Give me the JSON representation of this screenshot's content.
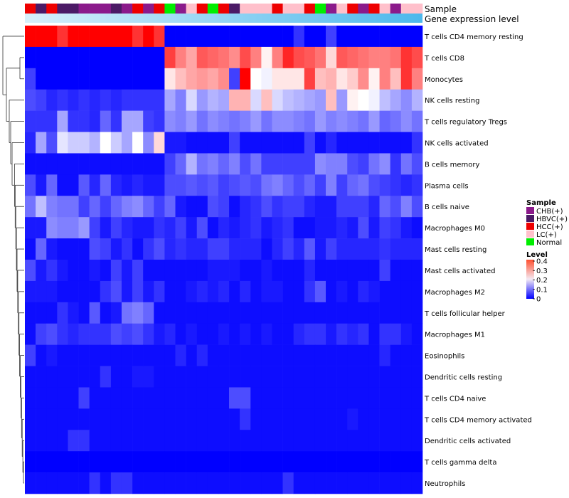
{
  "chart_data": {
    "type": "heatmap",
    "title": "",
    "annotation_tracks": [
      "Sample",
      "Gene expression level"
    ],
    "sample_annotation": [
      "HCC(+)",
      "HBVC(+)",
      "HCC(+)",
      "HBVC(+)",
      "HBVC(+)",
      "CHB(+)",
      "CHB(+)",
      "CHB(+)",
      "HBVC(+)",
      "CHB(+)",
      "HCC(+)",
      "CHB(+)",
      "HCC(+)",
      "Normal",
      "CHB(+)",
      "LC(+)",
      "HCC(+)",
      "Normal",
      "HCC(+)",
      "HBVC(+)",
      "LC(+)",
      "LC(+)",
      "LC(+)",
      "HCC(+)",
      "LC(+)",
      "LC(+)",
      "HCC(+)",
      "Normal",
      "CHB(+)",
      "LC(+)",
      "HCC(+)",
      "CHB(+)",
      "HCC(+)",
      "LC(+)",
      "CHB(+)",
      "LC(+)",
      "LC(+)"
    ],
    "rows": [
      "T cells CD4 memory resting",
      "T cells CD8",
      "Monocytes",
      "NK cells resting",
      "T cells regulatory  Tregs",
      "NK cells activated",
      "B cells memory",
      "Plasma cells",
      "B cells naive",
      "Macrophages M0",
      "Mast cells resting",
      "Mast cells activated",
      "Macrophages M2",
      "T cells follicular helper",
      "Macrophages M1",
      "Eosinophils",
      "Dendritic cells resting",
      "T cells CD4 naive",
      "T cells CD4 memory activated",
      "Dendritic cells activated",
      "T cells gamma delta",
      "Neutrophils"
    ],
    "values": [
      [
        0.4,
        0.4,
        0.4,
        0.36,
        0.4,
        0.4,
        0.4,
        0.4,
        0.4,
        0.4,
        0.36,
        0.4,
        0.36,
        0,
        0,
        0,
        0,
        0,
        0,
        0,
        0,
        0,
        0,
        0,
        0,
        0.04,
        0,
        0,
        0.05,
        0,
        0,
        0,
        0,
        0,
        0,
        0,
        0
      ],
      [
        0,
        0,
        0,
        0,
        0,
        0,
        0,
        0,
        0,
        0,
        0,
        0,
        0,
        0.35,
        0.3,
        0.27,
        0.33,
        0.32,
        0.31,
        0.29,
        0.34,
        0.3,
        0.21,
        0.3,
        0.37,
        0.34,
        0.33,
        0.31,
        0.23,
        0.33,
        0.32,
        0.31,
        0.3,
        0.3,
        0.31,
        0.36,
        0.34
      ],
      [
        0.05,
        0,
        0,
        0,
        0,
        0,
        0,
        0,
        0,
        0,
        0,
        0,
        0,
        0.22,
        0.25,
        0.27,
        0.28,
        0.27,
        0.29,
        0.05,
        0.4,
        0.2,
        0.19,
        0.22,
        0.22,
        0.22,
        0.35,
        0.25,
        0.26,
        0.22,
        0.24,
        0.29,
        0.21,
        0.3,
        0.25,
        0.36,
        0.3
      ],
      [
        0.06,
        0.05,
        0.03,
        0.04,
        0.03,
        0.04,
        0.03,
        0.04,
        0.03,
        0.04,
        0.04,
        0.04,
        0.04,
        0.13,
        0.1,
        0.17,
        0.12,
        0.14,
        0.13,
        0.26,
        0.26,
        0.17,
        0.25,
        0.17,
        0.15,
        0.14,
        0.13,
        0.12,
        0.25,
        0.12,
        0.21,
        0.2,
        0.19,
        0.15,
        0.13,
        0.11,
        0.14
      ],
      [
        0.04,
        0.04,
        0.04,
        0.13,
        0.04,
        0.04,
        0.03,
        0.08,
        0.04,
        0.13,
        0.13,
        0.05,
        0.04,
        0.11,
        0.1,
        0.12,
        0.09,
        0.11,
        0.1,
        0.09,
        0.1,
        0.12,
        0.09,
        0.11,
        0.11,
        0.1,
        0.09,
        0.12,
        0.1,
        0.11,
        0.1,
        0.09,
        0.12,
        0.08,
        0.09,
        0.11,
        0.09
      ],
      [
        0.03,
        0.13,
        0.06,
        0.18,
        0.16,
        0.16,
        0.14,
        0.2,
        0.16,
        0.13,
        0.2,
        0.11,
        0.23,
        0.02,
        0.02,
        0.01,
        0.01,
        0.01,
        0.01,
        0.05,
        0.01,
        0.01,
        0.01,
        0.01,
        0.01,
        0.01,
        0.05,
        0.01,
        0.03,
        0.01,
        0.01,
        0.01,
        0.01,
        0.01,
        0.01,
        0.01,
        0.04
      ],
      [
        0.01,
        0.01,
        0.01,
        0.01,
        0.01,
        0.01,
        0.01,
        0.01,
        0.01,
        0.01,
        0.01,
        0.01,
        0.01,
        0.05,
        0.08,
        0.14,
        0.09,
        0.1,
        0.08,
        0.1,
        0.06,
        0.09,
        0.05,
        0.05,
        0.05,
        0.05,
        0.05,
        0.11,
        0.1,
        0.1,
        0.06,
        0.05,
        0.09,
        0.11,
        0.04,
        0.09,
        0.06
      ],
      [
        0.06,
        0.02,
        0.08,
        0.01,
        0.01,
        0.07,
        0.03,
        0.08,
        0.03,
        0.02,
        0.03,
        0.02,
        0.02,
        0.06,
        0.06,
        0.07,
        0.06,
        0.07,
        0.05,
        0.06,
        0.07,
        0.06,
        0.09,
        0.1,
        0.08,
        0.06,
        0.08,
        0.05,
        0.1,
        0.05,
        0.08,
        0.09,
        0.06,
        0.05,
        0.04,
        0.03,
        0.04
      ],
      [
        0.09,
        0.15,
        0.1,
        0.09,
        0.09,
        0.05,
        0.08,
        0.05,
        0.08,
        0.1,
        0.11,
        0.08,
        0.05,
        0.08,
        0.02,
        0.01,
        0.01,
        0.06,
        0.05,
        0.01,
        0.03,
        0.04,
        0.06,
        0.04,
        0.05,
        0.05,
        0.03,
        0.02,
        0.02,
        0.05,
        0.05,
        0.05,
        0.03,
        0.08,
        0.06,
        0.1,
        0.06
      ],
      [
        0.02,
        0.02,
        0.11,
        0.1,
        0.1,
        0.12,
        0.05,
        0.02,
        0.05,
        0.03,
        0.02,
        0.02,
        0.04,
        0.03,
        0.05,
        0.02,
        0.06,
        0.01,
        0.03,
        0.02,
        0.03,
        0.04,
        0.02,
        0.03,
        0.04,
        0.01,
        0.01,
        0.02,
        0.02,
        0.03,
        0.02,
        0.06,
        0.02,
        0.05,
        0.04,
        0.02,
        0.01
      ],
      [
        0.01,
        0.08,
        0.02,
        0.01,
        0.01,
        0.01,
        0.06,
        0.05,
        0.02,
        0.04,
        0.01,
        0.04,
        0.06,
        0.03,
        0.04,
        0.03,
        0.03,
        0.05,
        0.05,
        0.03,
        0.03,
        0.03,
        0.01,
        0.03,
        0.05,
        0.03,
        0.07,
        0.02,
        0.05,
        0.03,
        0.03,
        0.03,
        0.03,
        0.04,
        0.03,
        0.03,
        0.03
      ],
      [
        0.06,
        0.02,
        0.04,
        0.02,
        0.01,
        0.01,
        0.02,
        0.01,
        0.05,
        0.02,
        0.05,
        0.01,
        0.01,
        0.01,
        0.01,
        0.01,
        0.01,
        0.02,
        0.02,
        0.02,
        0.01,
        0.01,
        0.02,
        0.01,
        0.01,
        0.01,
        0.03,
        0.01,
        0.01,
        0.01,
        0.01,
        0.01,
        0.01,
        0.05,
        0.01,
        0.01,
        0.01
      ],
      [
        0.02,
        0.02,
        0.02,
        0.01,
        0.01,
        0.01,
        0.01,
        0.04,
        0.06,
        0.02,
        0.05,
        0.02,
        0.04,
        0.01,
        0.01,
        0.02,
        0.03,
        0.02,
        0.03,
        0.01,
        0.03,
        0.01,
        0.02,
        0.02,
        0.01,
        0.01,
        0.04,
        0.07,
        0.01,
        0.02,
        0.01,
        0.03,
        0.02,
        0.01,
        0.01,
        0.01,
        0.01
      ],
      [
        0.01,
        0.01,
        0.01,
        0.04,
        0.02,
        0.01,
        0.07,
        0.01,
        0.02,
        0.09,
        0.1,
        0.08,
        0.01,
        0.01,
        0.01,
        0.01,
        0.01,
        0.01,
        0.01,
        0.01,
        0.01,
        0.01,
        0.01,
        0.01,
        0.01,
        0.01,
        0.01,
        0.01,
        0.01,
        0.01,
        0.01,
        0.01,
        0.01,
        0.01,
        0.01,
        0.01,
        0.01
      ],
      [
        0.01,
        0.05,
        0.06,
        0.04,
        0.03,
        0.04,
        0.04,
        0.04,
        0.06,
        0.05,
        0.06,
        0.04,
        0.02,
        0.03,
        0.01,
        0.02,
        0.01,
        0.01,
        0.02,
        0.01,
        0.02,
        0.01,
        0.02,
        0.01,
        0.01,
        0.03,
        0.04,
        0.04,
        0.02,
        0.04,
        0.03,
        0.04,
        0.01,
        0.04,
        0.04,
        0.02,
        0.01
      ],
      [
        0.05,
        0.01,
        0.02,
        0.01,
        0.01,
        0.01,
        0.01,
        0.01,
        0.01,
        0.01,
        0.01,
        0.01,
        0.01,
        0.01,
        0.03,
        0.01,
        0.03,
        0.01,
        0.01,
        0.01,
        0.01,
        0.01,
        0.01,
        0.01,
        0.01,
        0.01,
        0.01,
        0.01,
        0.01,
        0.01,
        0.01,
        0.01,
        0.01,
        0.03,
        0.01,
        0.01,
        0.01
      ],
      [
        0.01,
        0.01,
        0.01,
        0.01,
        0.01,
        0.01,
        0.01,
        0.04,
        0.01,
        0.01,
        0.02,
        0.02,
        0.01,
        0.01,
        0.01,
        0.01,
        0.01,
        0.01,
        0.01,
        0.01,
        0.01,
        0.01,
        0.01,
        0.01,
        0.01,
        0.01,
        0.01,
        0.01,
        0.01,
        0.01,
        0.01,
        0.01,
        0.01,
        0.01,
        0.01,
        0.01,
        0.01
      ],
      [
        0.01,
        0.01,
        0.01,
        0.01,
        0.01,
        0.05,
        0.01,
        0.01,
        0.01,
        0.01,
        0.01,
        0.01,
        0.01,
        0.01,
        0.01,
        0.01,
        0.01,
        0.01,
        0.01,
        0.06,
        0.06,
        0.01,
        0.01,
        0.01,
        0.01,
        0.01,
        0.01,
        0.01,
        0.01,
        0.01,
        0.01,
        0.01,
        0.01,
        0.01,
        0.01,
        0.01,
        0.01
      ],
      [
        0.01,
        0.01,
        0.01,
        0.01,
        0.01,
        0.01,
        0.01,
        0.01,
        0.01,
        0.01,
        0.01,
        0.01,
        0.01,
        0.01,
        0.01,
        0.01,
        0.01,
        0.01,
        0.01,
        0.01,
        0.04,
        0.01,
        0.01,
        0.01,
        0.01,
        0.01,
        0.01,
        0.01,
        0.01,
        0.01,
        0.02,
        0.01,
        0.01,
        0.01,
        0.01,
        0.01,
        0.01
      ],
      [
        0.01,
        0.01,
        0.01,
        0.01,
        0.04,
        0.04,
        0.01,
        0.01,
        0.01,
        0.01,
        0.01,
        0.01,
        0.01,
        0.01,
        0.01,
        0.01,
        0.01,
        0.01,
        0.01,
        0.01,
        0.01,
        0.01,
        0.01,
        0.01,
        0.01,
        0.01,
        0.01,
        0.01,
        0.01,
        0.01,
        0.01,
        0.01,
        0.01,
        0.01,
        0.01,
        0.01,
        0.01
      ],
      [
        0,
        0,
        0,
        0,
        0,
        0,
        0,
        0,
        0,
        0,
        0,
        0,
        0,
        0,
        0,
        0,
        0,
        0,
        0,
        0,
        0,
        0,
        0,
        0,
        0,
        0,
        0,
        0,
        0,
        0,
        0,
        0,
        0,
        0,
        0,
        0,
        0
      ],
      [
        0.01,
        0.01,
        0.01,
        0.01,
        0.01,
        0.01,
        0.04,
        0.01,
        0.04,
        0.04,
        0.01,
        0.01,
        0.01,
        0.01,
        0.01,
        0.01,
        0.01,
        0.01,
        0.01,
        0.01,
        0.01,
        0.01,
        0.01,
        0.01,
        0.04,
        0.01,
        0.01,
        0.01,
        0.01,
        0.01,
        0.01,
        0.01,
        0.01,
        0.01,
        0.01,
        0.01,
        0.01
      ]
    ],
    "legend": {
      "sample_title": "Sample",
      "sample_items": [
        {
          "label": "CHB(+)",
          "color": "#8b1a8b"
        },
        {
          "label": "HBVC(+)",
          "color": "#4b1a66"
        },
        {
          "label": "HCC(+)",
          "color": "#ee0000"
        },
        {
          "label": "LC(+)",
          "color": "#ffc0cb"
        },
        {
          "label": "Normal",
          "color": "#00ee00"
        }
      ],
      "level_title": "Level",
      "level_ticks": [
        0.4,
        0.3,
        0.2,
        0.1,
        0
      ]
    },
    "color_scale": {
      "low": "#0000ff",
      "mid": "#ffffff",
      "high": "#ff0000",
      "domain": [
        0,
        0.2,
        0.4
      ]
    },
    "expression_bar_colors": [
      "#d7f0fb",
      "#4db8ec"
    ]
  }
}
